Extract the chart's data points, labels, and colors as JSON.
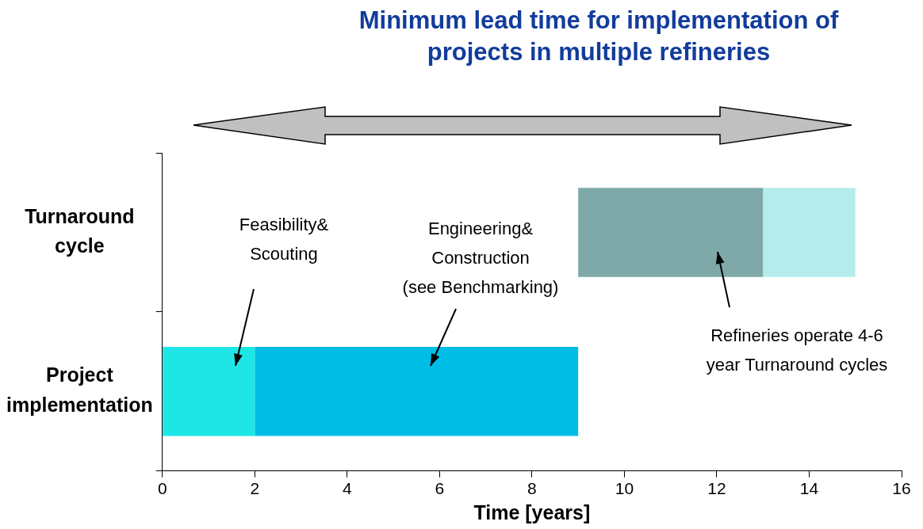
{
  "chart_data": {
    "type": "bar",
    "orientation": "horizontal",
    "title": "Minimum lead time for implementation of projects in multiple refineries",
    "xlabel": "Time [years]",
    "categories": [
      "Turnaround cycle",
      "Project implementation"
    ],
    "series": [
      {
        "values": [
          4,
          2
        ],
        "base": [
          9,
          0
        ],
        "colors": [
          "#7fa9a9",
          "#1fe6e6"
        ]
      },
      {
        "values": [
          2,
          7
        ],
        "base": [
          13,
          2
        ],
        "colors": [
          "#b4ecec",
          "#00bde6"
        ]
      }
    ],
    "xlim": [
      0,
      16
    ],
    "xticks": [
      0,
      2,
      4,
      6,
      8,
      10,
      12,
      14,
      16
    ],
    "grid": false,
    "legend": false,
    "annotations": [
      "Feasibility&\nScouting",
      "Engineering&\nConstruction\n(see Benchmarking)",
      "Refineries operate 4-6\nyear Turnaround cycles"
    ]
  }
}
